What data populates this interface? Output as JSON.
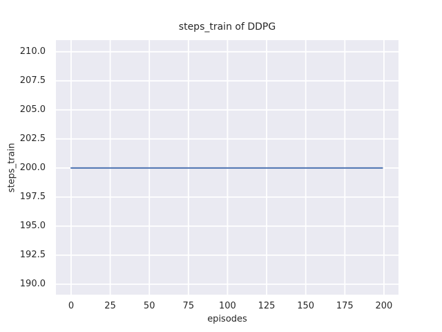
{
  "chart_data": {
    "type": "line",
    "title": "steps_train of DDPG",
    "xlabel": "episodes",
    "ylabel": "steps_train",
    "xlim": [
      -9.7,
      209.3
    ],
    "ylim": [
      189.1,
      211.0
    ],
    "xticks": [
      0,
      25,
      50,
      75,
      100,
      125,
      150,
      175,
      200
    ],
    "yticks": [
      190.0,
      192.5,
      195.0,
      197.5,
      200.0,
      202.5,
      205.0,
      207.5,
      210.0
    ],
    "grid": true,
    "legend": "none",
    "series": [
      {
        "name": "steps_train",
        "x": [
          0,
          199
        ],
        "y": [
          200,
          200
        ]
      }
    ],
    "style": {
      "figure_bg": "#ffffff",
      "axes_bg": "#EAEAF2",
      "grid_color": "#FFFFFF",
      "text_color": "#262626",
      "line_color": "#4C72B0",
      "line_width": 2
    }
  }
}
